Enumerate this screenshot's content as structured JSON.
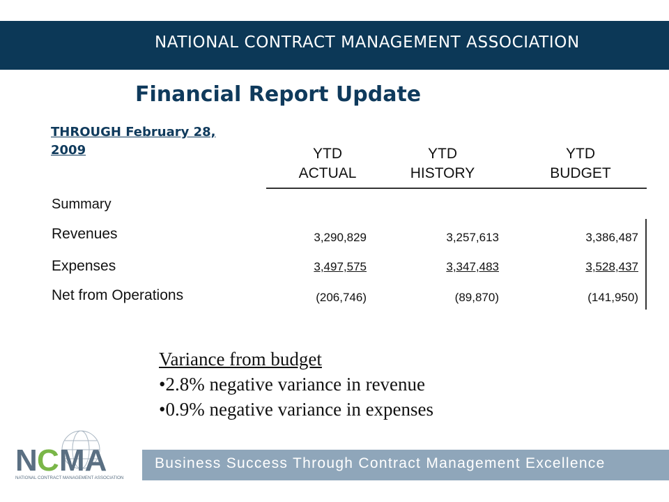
{
  "header": {
    "org_name": "NATIONAL CONTRACT MANAGEMENT ASSOCIATION"
  },
  "report": {
    "title": "Financial Report Update",
    "through_line1": "THROUGH February 28,",
    "through_line2": "2009",
    "columns": [
      {
        "line1": "YTD",
        "line2": "ACTUAL"
      },
      {
        "line1": "YTD",
        "line2": "HISTORY"
      },
      {
        "line1": "YTD",
        "line2": "BUDGET"
      }
    ],
    "summary_label": "Summary",
    "rows": [
      {
        "label": "Revenues",
        "values": [
          "3,290,829",
          "3,257,613",
          "3,386,487"
        ]
      },
      {
        "label": "Expenses",
        "values": [
          "3,497,575",
          "3,347,483",
          "3,528,437"
        ]
      },
      {
        "label": "Net from Operations",
        "values": [
          "(206,746)",
          "(89,870)",
          "(141,950)"
        ]
      }
    ]
  },
  "variance": {
    "heading": "Variance from budget",
    "bullets": [
      "•2.8% negative variance in revenue",
      "•0.9% negative variance in expenses"
    ]
  },
  "footer": {
    "tagline": "Business Success Through Contract Management Excellence",
    "logo_text": "NCMA",
    "logo_subtext": "NATIONAL CONTRACT MANAGEMENT ASSOCIATION"
  },
  "colors": {
    "navy": "#0c3857",
    "title_blue": "#0f3a5c",
    "footer_band": "#8fa6ba",
    "logo_green": "#7ab648"
  }
}
